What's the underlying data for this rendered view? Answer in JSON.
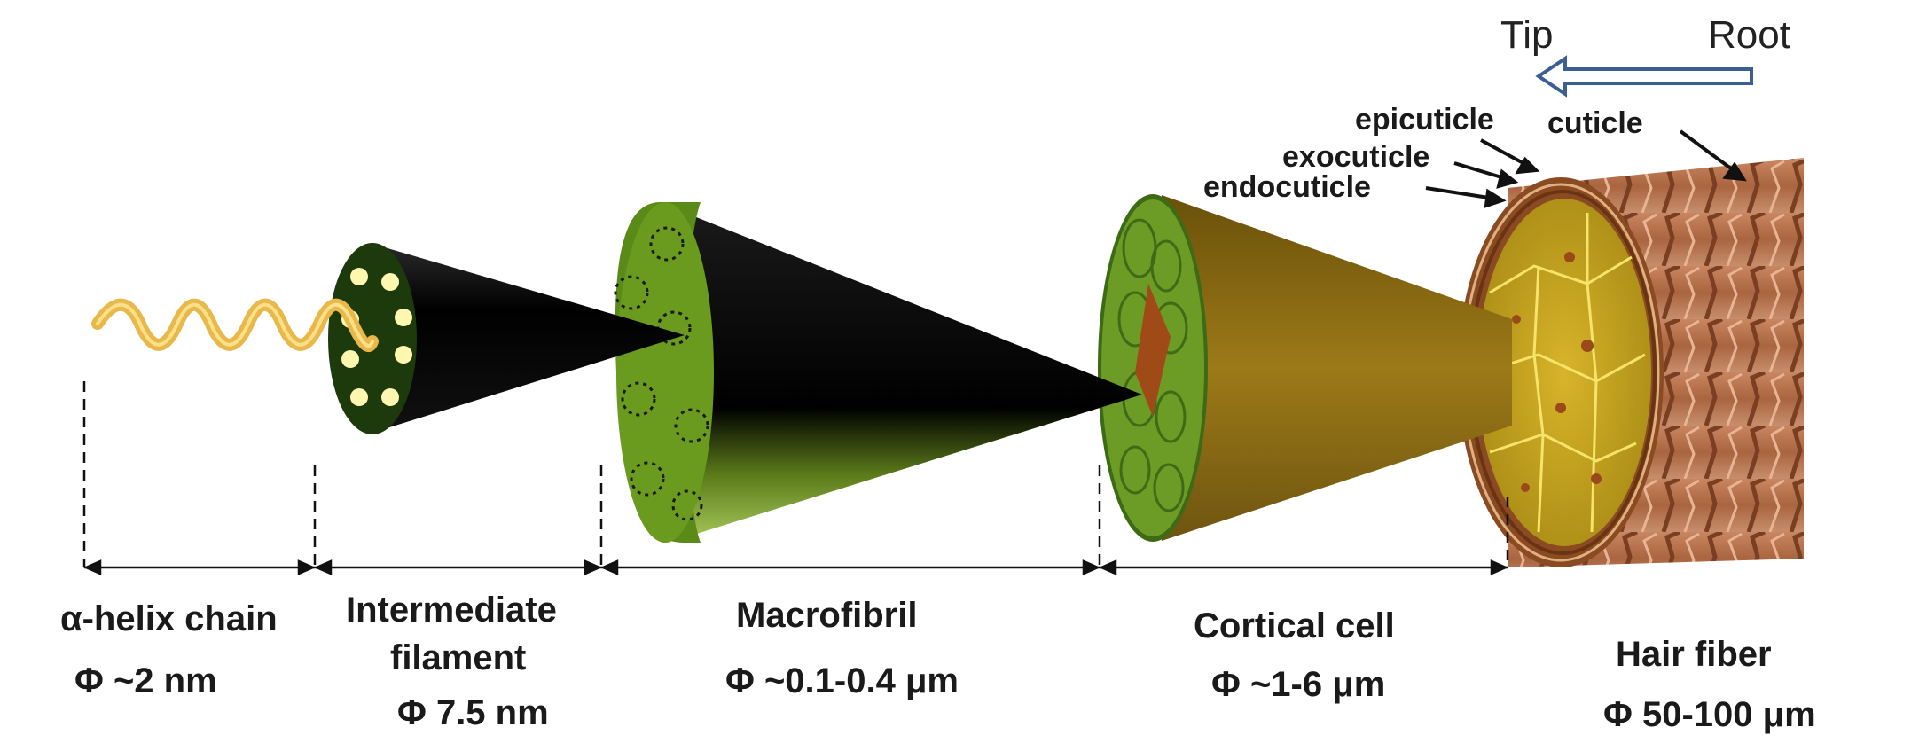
{
  "direction": {
    "tip": "Tip",
    "root": "Root",
    "arrow_color": "#3a5f95"
  },
  "layers": {
    "epicuticle": "epicuticle",
    "exocuticle": "exocuticle",
    "endocuticle": "endocuticle",
    "cuticle": "cuticle"
  },
  "levels": [
    {
      "name": "α-helix chain",
      "size": "Φ ~2 nm"
    },
    {
      "name_line1": "Intermediate",
      "name_line2": "filament",
      "size": "Φ 7.5 nm"
    },
    {
      "name": "Macrofibril",
      "size": "Φ ~0.1-0.4 μm"
    },
    {
      "name": "Cortical cell",
      "size": "Φ ~1-6 μm"
    },
    {
      "name": "Hair fiber",
      "size": "Φ 50-100 μm"
    }
  ],
  "colors": {
    "helix": "#e8b84a",
    "filament_face": "#1d3a0d",
    "dots": "#fff6b0",
    "cone_dark": "#050505",
    "macrofibril_face": "#6a9a1e",
    "cortical_face": "#5e8f1f",
    "cortical_cone": "#8a6a12",
    "hair_surface": "#b3724e",
    "cell_face": "#c7a51f"
  }
}
